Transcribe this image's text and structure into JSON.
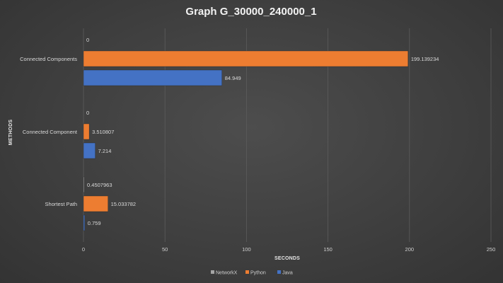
{
  "chart_data": {
    "type": "bar",
    "orientation": "horizontal",
    "title": "Graph G_30000_240000_1",
    "xlabel": "SECONDS",
    "ylabel": "METHODS",
    "xlim": [
      0,
      250
    ],
    "x_ticks": [
      "0",
      "50",
      "100",
      "150",
      "200",
      "250"
    ],
    "grid": true,
    "legend_position": "bottom",
    "categories": [
      "Connected Components",
      "Connected Component",
      "Shortest Path"
    ],
    "series": [
      {
        "name": "NetworkX",
        "color": "#a5a5a5",
        "values": [
          0,
          0,
          0.4507963
        ],
        "labels": [
          "0",
          "0",
          "0.4507963"
        ]
      },
      {
        "name": "Python",
        "color": "#ed7d31",
        "values": [
          199.139234,
          3.510807,
          15.033782
        ],
        "labels": [
          "199.139234",
          "3.510807",
          "15.033782"
        ]
      },
      {
        "name": "Java",
        "color": "#4472c4",
        "values": [
          84.949,
          7.214,
          0.759
        ],
        "labels": [
          "84.949",
          "7.214",
          "0.759"
        ]
      }
    ]
  }
}
